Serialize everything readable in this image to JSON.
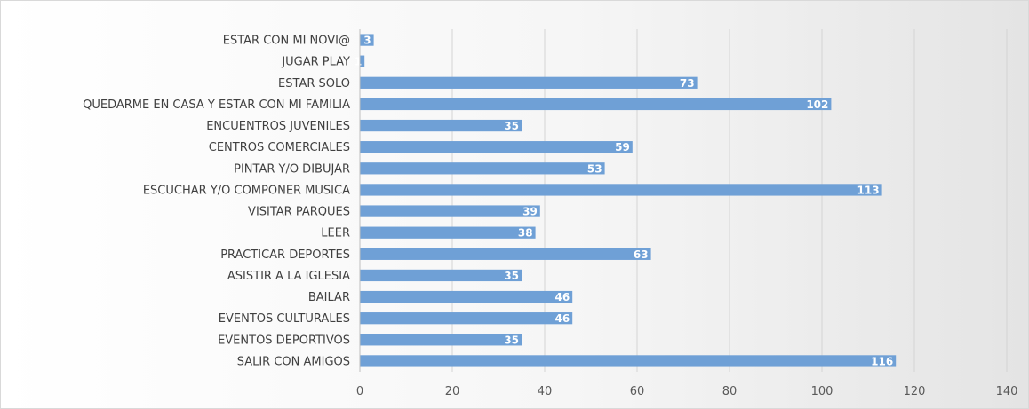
{
  "chart_data": {
    "type": "bar",
    "orientation": "horizontal",
    "title": "",
    "xlabel": "",
    "ylabel": "",
    "categories": [
      "ESTAR CON MI NOVI@",
      "JUGAR PLAY",
      "ESTAR SOLO",
      "QUEDARME EN CASA Y ESTAR CON MI FAMILIA",
      "ENCUENTROS JUVENILES",
      "CENTROS COMERCIALES",
      "PINTAR Y/O DIBUJAR",
      "ESCUCHAR Y/O COMPONER MUSICA",
      "VISITAR PARQUES",
      "LEER",
      "PRACTICAR DEPORTES",
      "ASISTIR A LA IGLESIA",
      "BAILAR",
      "EVENTOS CULTURALES",
      "EVENTOS DEPORTIVOS",
      "SALIR CON AMIGOS"
    ],
    "values": [
      3,
      1,
      73,
      102,
      35,
      59,
      53,
      113,
      39,
      38,
      63,
      35,
      46,
      46,
      35,
      116
    ],
    "xlim": [
      0,
      140
    ],
    "x_ticks": [
      "0",
      "20",
      "40",
      "60",
      "80",
      "100",
      "120",
      "140"
    ],
    "grid": "vertical",
    "legend": "none",
    "bar_color": "#6fa0d6",
    "data_labels": true
  }
}
